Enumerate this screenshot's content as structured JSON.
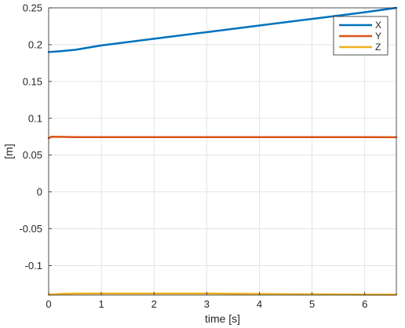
{
  "chart_data": {
    "type": "line",
    "xlabel": "time [s]",
    "ylabel": "[m]",
    "xlim": [
      0,
      6.6
    ],
    "ylim": [
      -0.14,
      0.25
    ],
    "xticks": [
      0,
      1,
      2,
      3,
      4,
      5,
      6
    ],
    "xtick_labels": [
      "0",
      "1",
      "2",
      "3",
      "4",
      "5",
      "6"
    ],
    "yticks": [
      0.25,
      0.2,
      0.15,
      0.1,
      0.05,
      0,
      -0.05,
      -0.1
    ],
    "ytick_labels": [
      "0.25",
      "0.2",
      "0.15",
      "0.1",
      "0.05",
      "0",
      "-0.05",
      "-0.1"
    ],
    "grid": true,
    "legend_position": "top-right",
    "series": [
      {
        "name": "X",
        "color": "#0072BD",
        "x": [
          0,
          0.2,
          0.5,
          1,
          2,
          3,
          4,
          5,
          6,
          6.6
        ],
        "y": [
          0.19,
          0.191,
          0.193,
          0.199,
          0.208,
          0.217,
          0.226,
          0.235,
          0.244,
          0.25
        ]
      },
      {
        "name": "Y",
        "color": "#D95319",
        "x": [
          0,
          0.05,
          0.2,
          0.5,
          1,
          2,
          3,
          4,
          5,
          6,
          6.6
        ],
        "y": [
          0.073,
          0.075,
          0.0748,
          0.0745,
          0.0745,
          0.0744,
          0.0745,
          0.0745,
          0.0744,
          0.0744,
          0.0743
        ]
      },
      {
        "name": "Z",
        "color": "#EDB120",
        "x": [
          0,
          0.2,
          0.5,
          1,
          2,
          3,
          4,
          5,
          6,
          6.6
        ],
        "y": [
          -0.1395,
          -0.1385,
          -0.138,
          -0.1378,
          -0.1378,
          -0.1379,
          -0.1385,
          -0.139,
          -0.1393,
          -0.1395
        ]
      }
    ]
  }
}
